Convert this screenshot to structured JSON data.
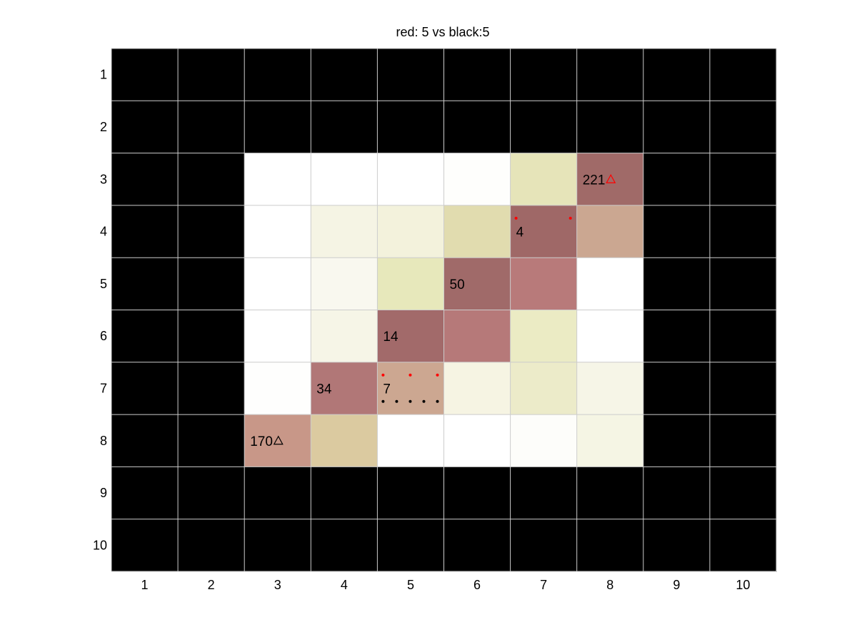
{
  "chart_data": {
    "type": "heatmap",
    "title": "red: 5 vs black:5",
    "xlabel": "",
    "ylabel": "",
    "x_ticks": [
      "1",
      "2",
      "3",
      "4",
      "5",
      "6",
      "7",
      "8",
      "9",
      "10"
    ],
    "y_ticks": [
      "1",
      "2",
      "3",
      "4",
      "5",
      "6",
      "7",
      "8",
      "9",
      "10"
    ],
    "grid": true,
    "y_direction": "top-to-bottom",
    "cell_colors": [
      [
        "#000000",
        "#000000",
        "#000000",
        "#000000",
        "#000000",
        "#000000",
        "#000000",
        "#000000",
        "#000000",
        "#000000"
      ],
      [
        "#000000",
        "#000000",
        "#000000",
        "#000000",
        "#000000",
        "#000000",
        "#000000",
        "#000000",
        "#000000",
        "#000000"
      ],
      [
        "#000000",
        "#000000",
        "#ffffff",
        "#ffffff",
        "#ffffff",
        "#fefefc",
        "#e6e4b9",
        "#a06a68",
        "#000000",
        "#000000"
      ],
      [
        "#000000",
        "#000000",
        "#ffffff",
        "#f5f4e4",
        "#f3f2dc",
        "#e1dcaf",
        "#9f6867",
        "#cba791",
        "#000000",
        "#000000"
      ],
      [
        "#000000",
        "#000000",
        "#ffffff",
        "#f9f8ef",
        "#e7e8bb",
        "#a06a69",
        "#b87a7a",
        "#ffffff",
        "#000000",
        "#000000"
      ],
      [
        "#000000",
        "#000000",
        "#ffffff",
        "#f6f5e7",
        "#a26a6a",
        "#b67979",
        "#ebebc4",
        "#ffffff",
        "#000000",
        "#000000"
      ],
      [
        "#000000",
        "#000000",
        "#fefefd",
        "#b17777",
        "#cca791",
        "#f6f4e3",
        "#ecebc9",
        "#f6f5e7",
        "#000000",
        "#000000"
      ],
      [
        "#000000",
        "#000000",
        "#c89788",
        "#dbcaa0",
        "#ffffff",
        "#ffffff",
        "#fdfdfa",
        "#f5f5e4",
        "#000000",
        "#000000"
      ],
      [
        "#000000",
        "#000000",
        "#000000",
        "#000000",
        "#000000",
        "#000000",
        "#000000",
        "#000000",
        "#000000",
        "#000000"
      ],
      [
        "#000000",
        "#000000",
        "#000000",
        "#000000",
        "#000000",
        "#000000",
        "#000000",
        "#000000",
        "#000000",
        "#000000"
      ]
    ],
    "cell_labels": [
      {
        "row": 3,
        "col": 8,
        "text": "221"
      },
      {
        "row": 4,
        "col": 7,
        "text": "4"
      },
      {
        "row": 5,
        "col": 6,
        "text": "50"
      },
      {
        "row": 6,
        "col": 5,
        "text": "14"
      },
      {
        "row": 7,
        "col": 4,
        "text": "34"
      },
      {
        "row": 7,
        "col": 5,
        "text": "7"
      },
      {
        "row": 8,
        "col": 3,
        "text": "170"
      }
    ],
    "markers": [
      {
        "row": 3,
        "col": 8,
        "symbol": "triangle",
        "color": "#ff0000"
      },
      {
        "row": 8,
        "col": 3,
        "symbol": "triangle",
        "color": "#000000"
      }
    ],
    "dots": [
      {
        "row": 4,
        "col": 7,
        "count": 2,
        "color": "#ff0000",
        "line": "upper"
      },
      {
        "row": 7,
        "col": 5,
        "count": 3,
        "color": "#ff0000",
        "line": "upper"
      },
      {
        "row": 7,
        "col": 5,
        "count": 5,
        "color": "#000000",
        "line": "lower"
      }
    ],
    "colors": {
      "grid_line": "#cccccc",
      "empty": "#000000"
    }
  }
}
